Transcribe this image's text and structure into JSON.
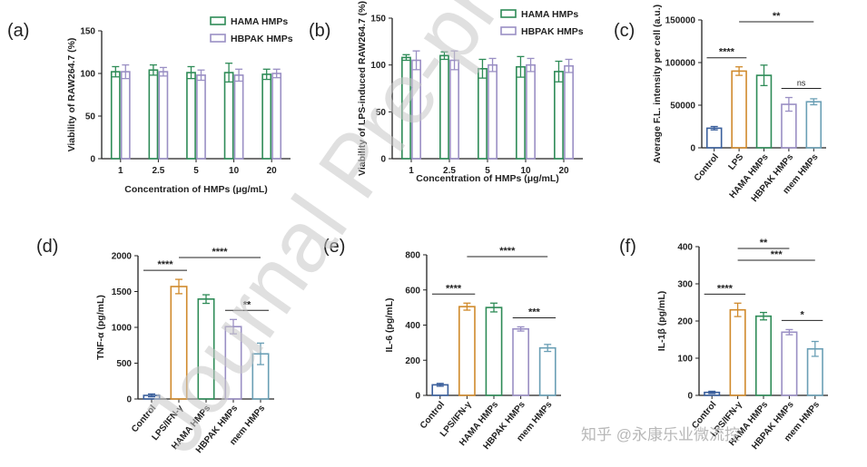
{
  "colors": {
    "hama": "#2e8b57",
    "hbpak": "#9a8fc4",
    "control": "#3a5f9c",
    "lps": "#d08a2c",
    "mem": "#6a9fb5",
    "axis": "#222222"
  },
  "watermark": "Journal Pre-proof",
  "credit": "知乎 @永康乐业微流控",
  "chart_data": [
    {
      "id": "a",
      "panel_label": "(a)",
      "type": "bar",
      "ylabel": "Viability of RAW264.7 (%)",
      "xlabel": "Concentration of HMPs (μg/mL)",
      "ylim": [
        0,
        150
      ],
      "yticks": [
        0,
        50,
        100,
        150
      ],
      "categories": [
        "1",
        "2.5",
        "5",
        "10",
        "20"
      ],
      "series": [
        {
          "name": "HAMA HMPs",
          "color_key": "hama",
          "values": [
            102,
            104,
            101,
            101,
            99
          ],
          "errors": [
            6,
            6,
            7,
            11,
            6
          ]
        },
        {
          "name": "HBPAK HMPs",
          "color_key": "hbpak",
          "values": [
            102,
            102,
            98,
            98,
            100
          ],
          "errors": [
            8,
            5,
            6,
            7,
            5
          ]
        }
      ],
      "legend": [
        "HAMA HMPs",
        "HBPAK HMPs"
      ]
    },
    {
      "id": "b",
      "panel_label": "(b)",
      "type": "bar",
      "ylabel": "Viability of LPS-induced RAW264.7 (%)",
      "xlabel": "Concentration of HMPs (μg/mL)",
      "ylim": [
        0,
        150
      ],
      "yticks": [
        0,
        50,
        100,
        150
      ],
      "categories": [
        "1",
        "2.5",
        "5",
        "10",
        "20"
      ],
      "series": [
        {
          "name": "HAMA HMPs",
          "color_key": "hama",
          "values": [
            108,
            110,
            96,
            98,
            93
          ],
          "errors": [
            3,
            4,
            10,
            11,
            11
          ]
        },
        {
          "name": "HBPAK HMPs",
          "color_key": "hbpak",
          "values": [
            105,
            105,
            100,
            100,
            99
          ],
          "errors": [
            10,
            10,
            7,
            7,
            7
          ]
        }
      ],
      "legend": [
        "HAMA HMPs",
        "HBPAK HMPs"
      ]
    },
    {
      "id": "c",
      "panel_label": "(c)",
      "type": "bar",
      "ylabel": "Average F.L. intensity per cell (a.u.)",
      "xlabel": "",
      "ylim": [
        0,
        150000
      ],
      "yticks": [
        0,
        50000,
        100000,
        150000
      ],
      "categories": [
        "Control",
        "LPS",
        "HAMA HMPs",
        "HBPAK HMPs",
        "mem HMPs"
      ],
      "values": [
        23000,
        90000,
        85000,
        51000,
        54000
      ],
      "errors": [
        2000,
        5000,
        12000,
        8000,
        3500
      ],
      "color_keys": [
        "control",
        "lps",
        "hama",
        "hbpak",
        "mem"
      ],
      "significance": [
        {
          "from": 0,
          "to": 1,
          "label": "****"
        },
        {
          "from": 1,
          "to": 4,
          "label": "**"
        },
        {
          "from": 3,
          "to": 4,
          "label": "ns"
        }
      ]
    },
    {
      "id": "d",
      "panel_label": "(d)",
      "type": "bar",
      "ylabel": "TNF-α (pg/mL)",
      "xlabel": "",
      "ylim": [
        0,
        2000
      ],
      "yticks": [
        0,
        500,
        1000,
        1500,
        2000
      ],
      "categories": [
        "Control",
        "LPS/IFN-γ",
        "HAMA HMPs",
        "HBPAK HMPs",
        "mem HMPs"
      ],
      "values": [
        50,
        1570,
        1395,
        1010,
        630
      ],
      "errors": [
        20,
        100,
        60,
        100,
        150
      ],
      "color_keys": [
        "control",
        "lps",
        "hama",
        "hbpak",
        "mem"
      ],
      "significance": [
        {
          "from": 0,
          "to": 1,
          "label": "****"
        },
        {
          "from": 1,
          "to": 4,
          "label": "****"
        },
        {
          "from": 3,
          "to": 4,
          "label": "**"
        }
      ]
    },
    {
      "id": "e",
      "panel_label": "(e)",
      "type": "bar",
      "ylabel": "IL-6 (pg/mL)",
      "xlabel": "",
      "ylim": [
        0,
        800
      ],
      "yticks": [
        0,
        200,
        400,
        600,
        800
      ],
      "categories": [
        "Control",
        "LPS/IFN-γ",
        "HAMA HMPs",
        "HBPAK HMPs",
        "mem HMPs"
      ],
      "values": [
        60,
        505,
        500,
        378,
        270
      ],
      "errors": [
        8,
        20,
        25,
        12,
        20
      ],
      "color_keys": [
        "control",
        "lps",
        "hama",
        "hbpak",
        "mem"
      ],
      "significance": [
        {
          "from": 0,
          "to": 1,
          "label": "****"
        },
        {
          "from": 1,
          "to": 4,
          "label": "****"
        },
        {
          "from": 3,
          "to": 4,
          "label": "***"
        }
      ]
    },
    {
      "id": "f",
      "panel_label": "(f)",
      "type": "bar",
      "ylabel": "IL-1β (pg/mL)",
      "xlabel": "",
      "ylim": [
        0,
        400
      ],
      "yticks": [
        0,
        100,
        200,
        300,
        400
      ],
      "categories": [
        "Control",
        "LPS/IFN-γ",
        "HAMA HMPs",
        "HBPAK HMPs",
        "mem HMPs"
      ],
      "values": [
        8,
        230,
        213,
        170,
        125
      ],
      "errors": [
        3,
        18,
        10,
        7,
        20
      ],
      "color_keys": [
        "control",
        "lps",
        "hama",
        "hbpak",
        "mem"
      ],
      "significance": [
        {
          "from": 0,
          "to": 1,
          "label": "****"
        },
        {
          "from": 1,
          "to": 3,
          "label": "**"
        },
        {
          "from": 1,
          "to": 4,
          "label": "***"
        },
        {
          "from": 3,
          "to": 4,
          "label": "*"
        }
      ]
    }
  ]
}
